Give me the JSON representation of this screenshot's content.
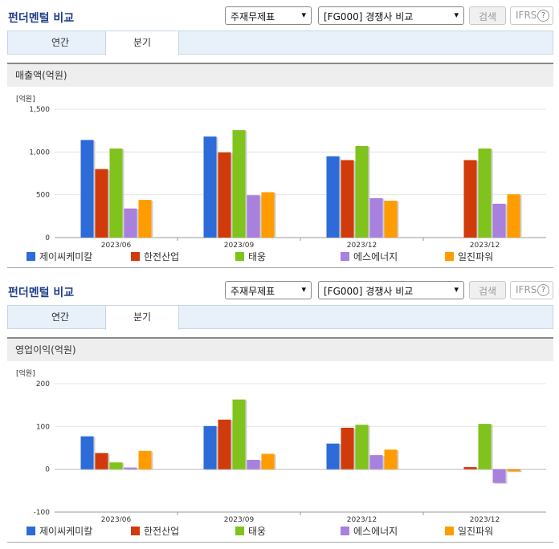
{
  "header": {
    "title": "펀더멘털 비교",
    "select_statement": "주재무제표",
    "select_compare": "[FG000] 경쟁사 비교",
    "search_label": "검색",
    "ifrs_label": "IFRS",
    "help_glyph": "?"
  },
  "tabs": {
    "annual": "연간",
    "quarter": "분기"
  },
  "legend": [
    {
      "name": "제이씨케미칼",
      "color": "#2d6bd8"
    },
    {
      "name": "한전산업",
      "color": "#d13a0b"
    },
    {
      "name": "태웅",
      "color": "#7fc31c"
    },
    {
      "name": "에스에너지",
      "color": "#a880dd"
    },
    {
      "name": "일진파워",
      "color": "#ff9c00"
    }
  ],
  "chart_data": [
    {
      "type": "bar",
      "title": "매출액(억원)",
      "unit_label": "[억원]",
      "categories": [
        "2023/06",
        "2023/09",
        "2023/12",
        "2023/12"
      ],
      "ylim": [
        0,
        1500
      ],
      "yticks": [
        0,
        500,
        1000,
        1500
      ],
      "ytick_labels": [
        "0",
        "500",
        "1,000",
        "1,500"
      ],
      "series": [
        {
          "name": "제이씨케미칼",
          "values": [
            1140,
            1180,
            950,
            null
          ]
        },
        {
          "name": "한전산업",
          "values": [
            800,
            995,
            905,
            905
          ]
        },
        {
          "name": "태웅",
          "values": [
            1040,
            1255,
            1070,
            1040
          ]
        },
        {
          "name": "에스에너지",
          "values": [
            340,
            495,
            460,
            395
          ]
        },
        {
          "name": "일진파워",
          "values": [
            440,
            530,
            430,
            505
          ]
        }
      ]
    },
    {
      "type": "bar",
      "title": "영업이익(억원)",
      "unit_label": "[억원]",
      "categories": [
        "2023/06",
        "2023/09",
        "2023/12",
        "2023/12"
      ],
      "ylim": [
        -100,
        200
      ],
      "yticks": [
        -100,
        0,
        100,
        200
      ],
      "ytick_labels": [
        "-100",
        "0",
        "100",
        "200"
      ],
      "series": [
        {
          "name": "제이씨케미칼",
          "values": [
            77,
            101,
            60,
            null
          ]
        },
        {
          "name": "한전산업",
          "values": [
            38,
            116,
            97,
            5
          ]
        },
        {
          "name": "태웅",
          "values": [
            16,
            163,
            104,
            106
          ]
        },
        {
          "name": "에스에너지",
          "values": [
            4,
            22,
            33,
            -32
          ]
        },
        {
          "name": "일진파워",
          "values": [
            43,
            36,
            46,
            -5
          ]
        }
      ]
    }
  ]
}
